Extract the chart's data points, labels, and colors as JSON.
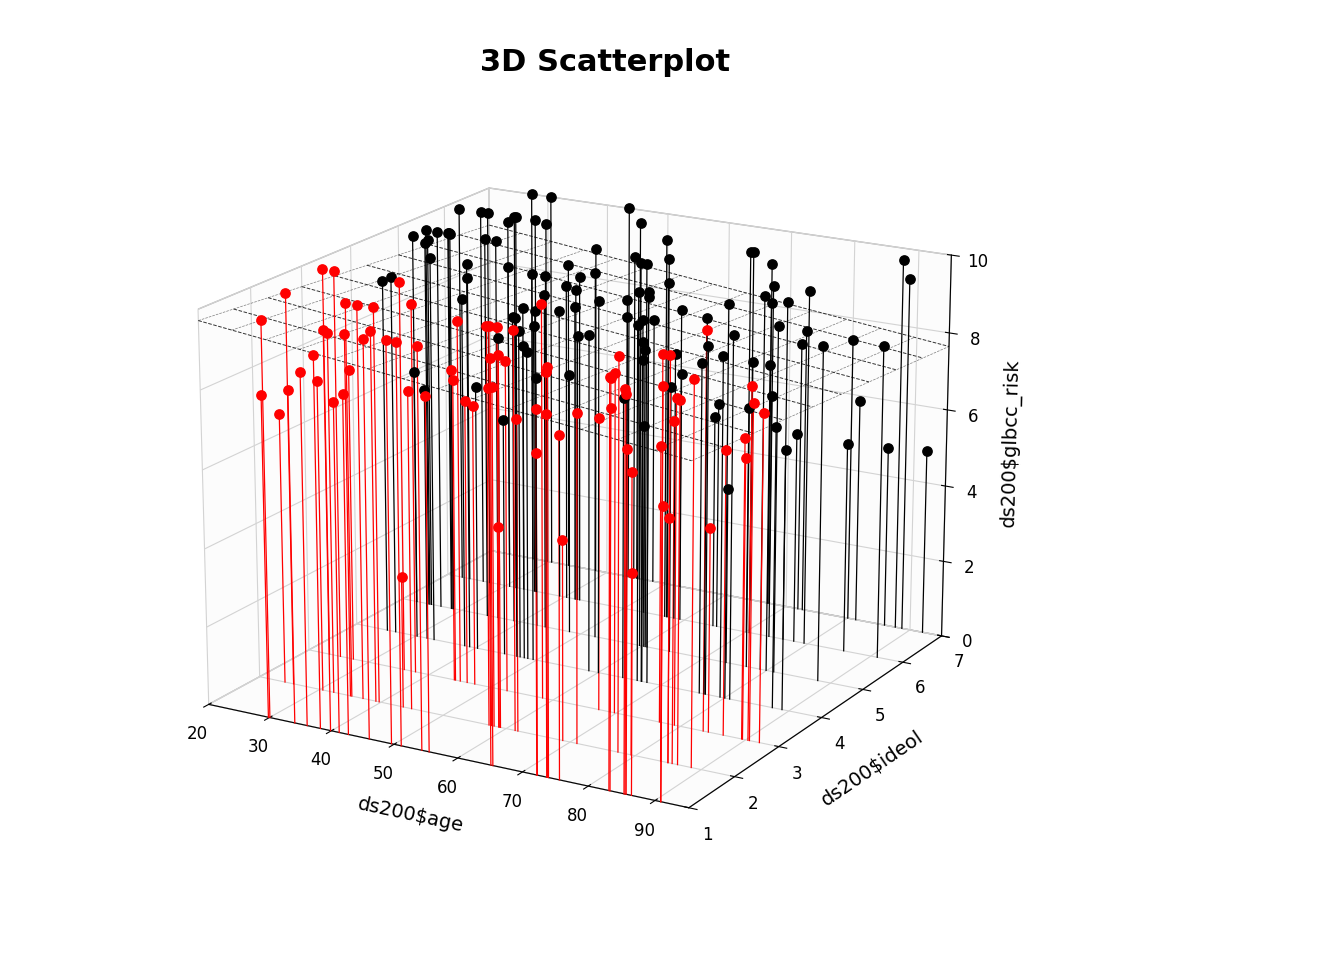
{
  "title": "3D Scatterplot",
  "xlabel": "ds200$age",
  "ylabel": "ds200$ideol",
  "zlabel": "ds200$glbcc_risk",
  "xlim": [
    20,
    95
  ],
  "ylim": [
    1,
    7
  ],
  "zlim": [
    0,
    10
  ],
  "xticks": [
    20,
    30,
    40,
    50,
    60,
    70,
    80,
    90
  ],
  "yticks": [
    1,
    2,
    3,
    4,
    5,
    6,
    7
  ],
  "zticks": [
    0,
    2,
    4,
    6,
    8,
    10
  ],
  "title_fontsize": 22,
  "label_fontsize": 14,
  "background_color": "#ffffff",
  "seed": 42,
  "n_points": 200,
  "regression_intercept": 10.2,
  "regression_age_coef": -0.018,
  "regression_ideol_coef": -0.12,
  "elev": 18,
  "azim": -60
}
